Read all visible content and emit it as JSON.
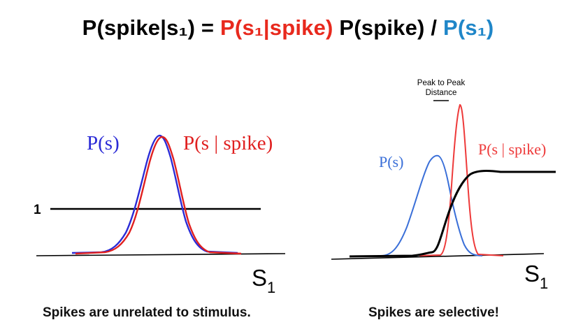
{
  "equation": {
    "lhs": "P(spike|s₁) = ",
    "likelihood": "P(s₁|spike)",
    "prior": " P(spike) / ",
    "evidence": "P(s₁)"
  },
  "left_panel": {
    "ps_label": "P(s)",
    "ps_spike_label": "P(s | spike)",
    "level_label": "1",
    "axis_label": "S",
    "axis_sub": "1",
    "caption": "Spikes are unrelated to stimulus."
  },
  "right_panel": {
    "ps_label": "P(s)",
    "ps_spike_label": "P(s | spike)",
    "peak_label_line1": "Peak to Peak",
    "peak_label_line2": "Distance",
    "axis_label": "S",
    "axis_sub": "1",
    "caption": "Spikes are selective!"
  },
  "colors": {
    "red": "#e8291d",
    "blue": "#1f86c8",
    "curve_blue": "#2b2bd6",
    "curve_red": "#e02020",
    "right_blue": "#3a6fd8",
    "right_red": "#ee3a3a"
  }
}
